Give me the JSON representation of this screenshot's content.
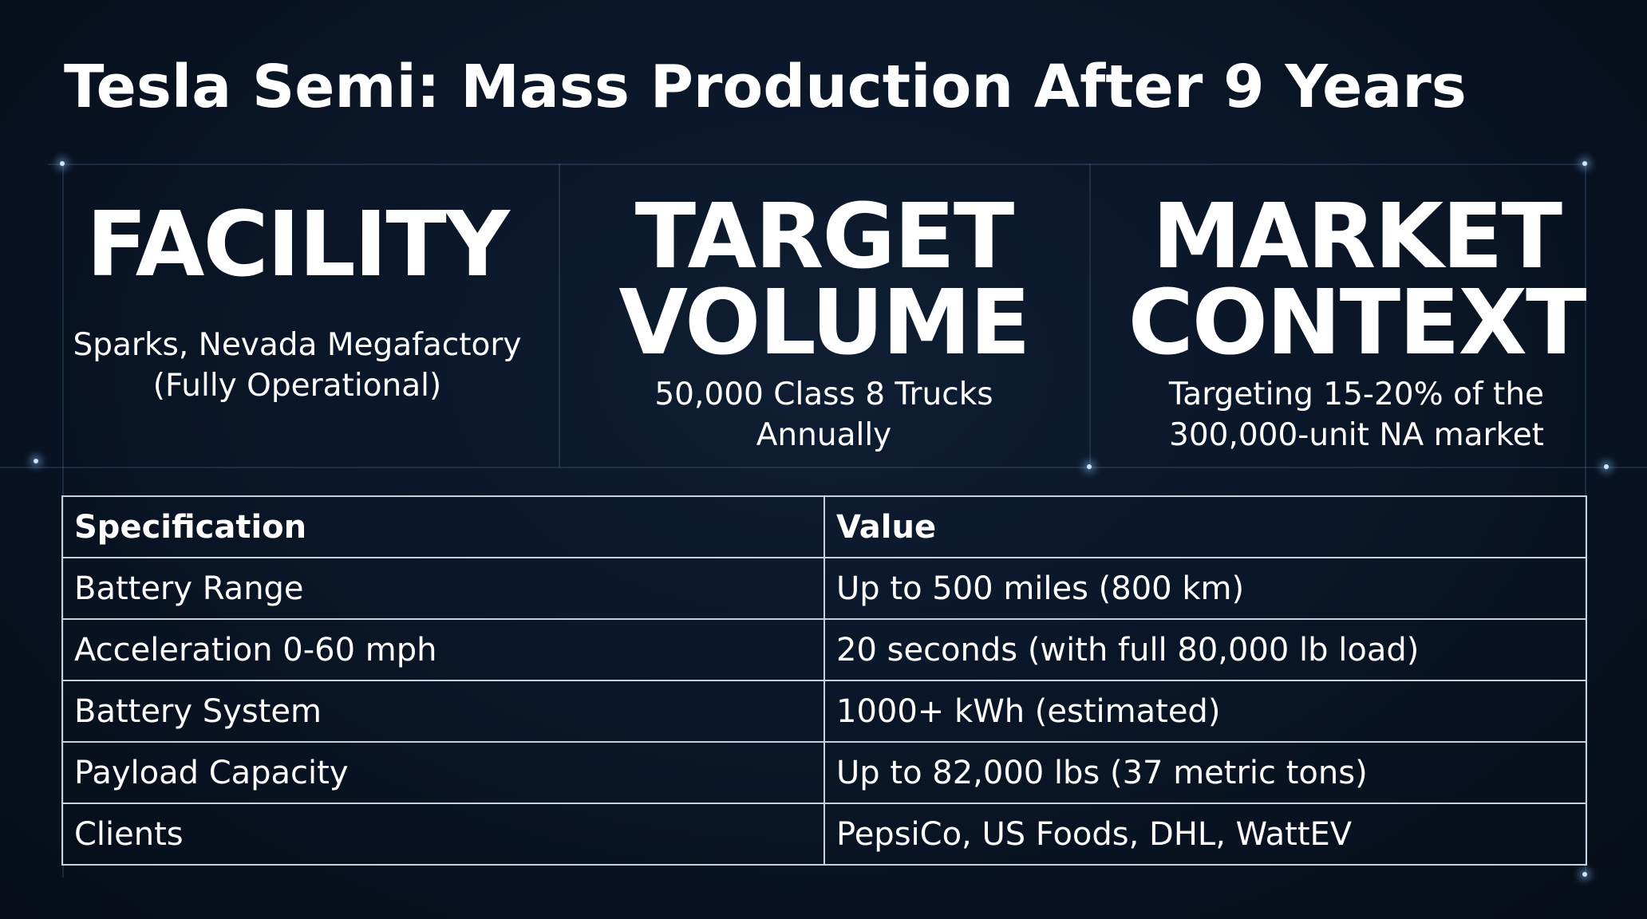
{
  "title": "Tesla Semi: Mass Production After 9 Years",
  "panels": [
    {
      "heading_line1": "FACILITY",
      "heading_line2": "",
      "lines": [
        "Sparks, Nevada Megafactory",
        "(Fully Operational)"
      ]
    },
    {
      "heading_line1": "TARGET",
      "heading_line2": "VOLUME",
      "lines": [
        "50,000 Class 8 Trucks",
        "Annually"
      ]
    },
    {
      "heading_line1": "MARKET",
      "heading_line2": "CONTEXT",
      "lines": [
        "Targeting 15-20% of the",
        "300,000-unit NA market"
      ]
    }
  ],
  "table": {
    "headers": [
      "Specification",
      "Value"
    ],
    "rows": [
      [
        "Battery Range",
        "Up to 500 miles (800 km)"
      ],
      [
        "Acceleration 0-60 mph",
        "20 seconds (with full 80,000 lb load)"
      ],
      [
        "Battery System",
        "1000+ kWh (estimated)"
      ],
      [
        "Payload Capacity",
        "Up to 82,000 lbs (37 metric tons)"
      ],
      [
        "Clients",
        "PepsiCo, US Foods, DHL, WattEV"
      ]
    ]
  },
  "colors": {
    "background": "#0a1628",
    "text": "#ffffff",
    "table_border": "#c8d2de",
    "grid_glow": "#cfe6ff"
  }
}
